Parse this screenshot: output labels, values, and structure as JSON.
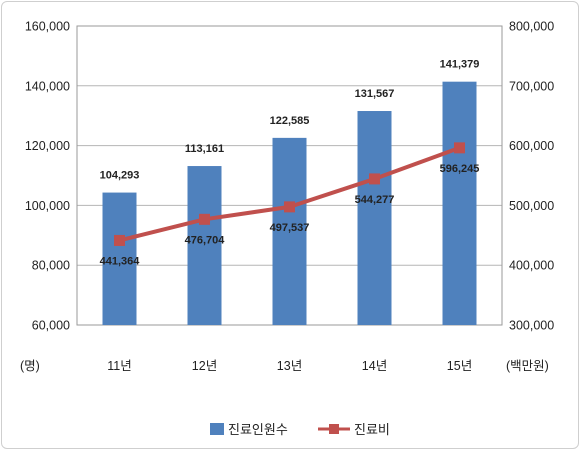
{
  "chart_data": {
    "type": "bar+line",
    "categories": [
      "11년",
      "12년",
      "13년",
      "14년",
      "15년"
    ],
    "series": [
      {
        "name": "진료인원수",
        "type": "bar",
        "axis": "left",
        "values": [
          104293,
          113161,
          122585,
          131567,
          141379
        ],
        "labels": [
          "104,293",
          "113,161",
          "122,585",
          "131,567",
          "141,379"
        ],
        "color": "#4f81bd"
      },
      {
        "name": "진료비",
        "type": "line",
        "axis": "right",
        "values": [
          441364,
          476704,
          497537,
          544277,
          596245
        ],
        "labels": [
          "441,364",
          "476,704",
          "497,537",
          "544,277",
          "596,245"
        ],
        "color": "#c0504d"
      }
    ],
    "y_left": {
      "unit": "(명)",
      "ylim": [
        60000,
        160000
      ],
      "ticks": [
        "60,000",
        "80,000",
        "100,000",
        "120,000",
        "140,000",
        "160,000"
      ],
      "tick_values": [
        60000,
        80000,
        100000,
        120000,
        140000,
        160000
      ]
    },
    "y_right": {
      "unit": "(백만원)",
      "ylim": [
        300000,
        800000
      ],
      "ticks": [
        "300,000",
        "400,000",
        "500,000",
        "600,000",
        "700,000",
        "800,000"
      ],
      "tick_values": [
        300000,
        400000,
        500000,
        600000,
        700000,
        800000
      ]
    },
    "grid": true,
    "legend_position": "bottom"
  }
}
